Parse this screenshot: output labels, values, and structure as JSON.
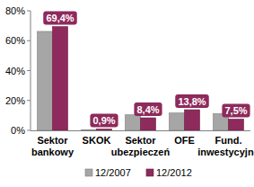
{
  "chart_data": {
    "type": "bar",
    "categories": [
      "Sektor bankowy",
      "SKOK",
      "Sektor ubezpieczeń",
      "OFE",
      "Fund. inwestycyjne"
    ],
    "series": [
      {
        "name": "12/2007",
        "color": "#a6a6a6",
        "values": [
          66.2,
          0.4,
          10.4,
          11.6,
          11.2
        ]
      },
      {
        "name": "12/2012",
        "color": "#8e2a5c",
        "values": [
          69.4,
          0.9,
          8.4,
          13.8,
          7.5
        ],
        "data_labels": true,
        "value_labels": [
          "69,4%",
          "0,9%",
          "8,4%",
          "13,8%",
          "7,5%"
        ]
      }
    ],
    "ylim": [
      0,
      80
    ],
    "yticks": [
      {
        "value": 0,
        "label": "0%"
      },
      {
        "value": 20,
        "label": "20%"
      },
      {
        "value": 40,
        "label": "40%"
      },
      {
        "value": 60,
        "label": "60%"
      },
      {
        "value": 80,
        "label": "80%"
      }
    ],
    "grid": false,
    "legend": "bottom"
  }
}
